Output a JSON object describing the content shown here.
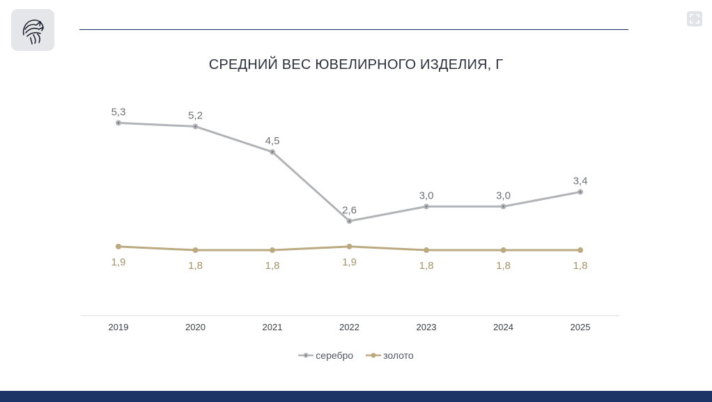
{
  "colors": {
    "silver": "#b1b3b6",
    "gold": "#bba982",
    "silver_label": "#6c6f74",
    "gold_label": "#a1926b",
    "navy": "#1c3566"
  },
  "icons": {
    "logo": "hermes-head-icon",
    "fullscreen": "fullscreen-icon"
  },
  "chart_data": {
    "type": "line",
    "title": "СРЕДНИЙ ВЕС ЮВЕЛИРНОГО ИЗДЕЛИЯ, Г",
    "categories": [
      "2019",
      "2020",
      "2021",
      "2022",
      "2023",
      "2024",
      "2025"
    ],
    "series": [
      {
        "name": "серебро",
        "values": [
          5.3,
          5.2,
          4.5,
          2.6,
          3.0,
          3.0,
          3.4
        ],
        "labels": [
          "5,3",
          "5,2",
          "4,5",
          "2,6",
          "3,0",
          "3,0",
          "3,4"
        ],
        "label_position": "above"
      },
      {
        "name": "золото",
        "values": [
          1.9,
          1.8,
          1.8,
          1.9,
          1.8,
          1.8,
          1.8
        ],
        "labels": [
          "1,9",
          "1,8",
          "1,8",
          "1,9",
          "1,8",
          "1,8",
          "1,8"
        ],
        "label_position": "below"
      }
    ],
    "ylim": [
      0,
      7
    ],
    "grid": false,
    "legend_position": "bottom"
  }
}
